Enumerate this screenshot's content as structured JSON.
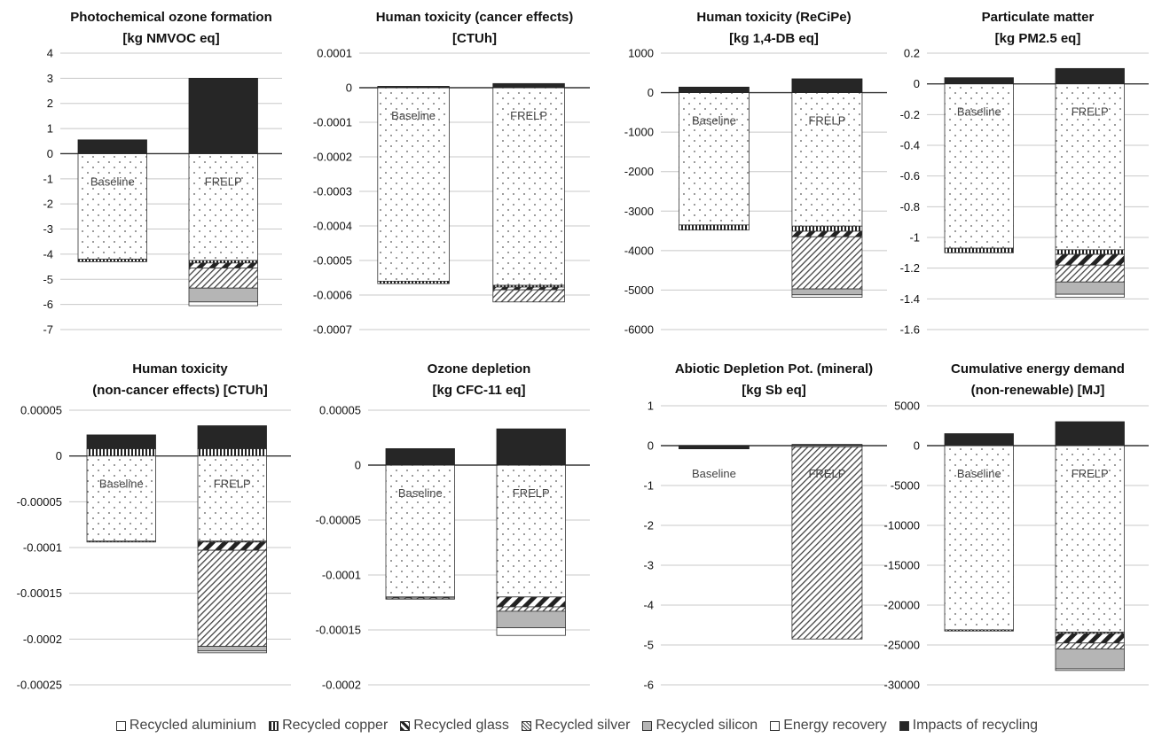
{
  "colors": {
    "impacts": "#262626",
    "silicon": "#b5b5b5",
    "axis": "#333333",
    "grid": "#c8c8c8"
  },
  "legend": [
    {
      "label": "Recycled aluminium",
      "key": "aluminium"
    },
    {
      "label": "Recycled copper",
      "key": "copper"
    },
    {
      "label": "Recycled glass",
      "key": "glass"
    },
    {
      "label": "Recycled silver",
      "key": "silver"
    },
    {
      "label": "Recycled silicon",
      "key": "silicon"
    },
    {
      "label": "Energy recovery",
      "key": "energy"
    },
    {
      "label": "Impacts of recycling",
      "key": "impacts"
    }
  ],
  "chart_data": [
    {
      "type": "bar",
      "stacked": true,
      "title": [
        "Photochemical ozone formation",
        "[kg NMVOC eq]"
      ],
      "yticks": [
        "4",
        "3",
        "2",
        "1",
        "0",
        "-1",
        "-2",
        "-3",
        "-4",
        "-5",
        "-6",
        "-7"
      ],
      "ylim": [
        -7,
        4
      ],
      "grid": true,
      "categories": [
        "Baseline",
        "FRELP"
      ],
      "series": [
        {
          "name": "Recycled aluminium",
          "key": "aluminium",
          "values": [
            -4.2,
            -4.25
          ]
        },
        {
          "name": "Recycled copper",
          "key": "copper",
          "values": [
            -0.1,
            -0.1
          ]
        },
        {
          "name": "Recycled glass",
          "key": "glass",
          "values": [
            0,
            -0.2
          ]
        },
        {
          "name": "Recycled silver",
          "key": "silver",
          "values": [
            0,
            -0.8
          ]
        },
        {
          "name": "Recycled silicon",
          "key": "silicon",
          "values": [
            0,
            -0.55
          ]
        },
        {
          "name": "Energy recovery",
          "key": "energy",
          "values": [
            0,
            -0.15
          ]
        },
        {
          "name": "Impacts of recycling",
          "key": "impacts",
          "values": [
            0.55,
            3.0
          ]
        }
      ]
    },
    {
      "type": "bar",
      "stacked": true,
      "title": [
        "Human toxicity (cancer effects)",
        "[CTUh]"
      ],
      "yticks": [
        "0.0001",
        "0",
        "-0.0001",
        "-0.0002",
        "-0.0003",
        "-0.0004",
        "-0.0005",
        "-0.0006",
        "-0.0007"
      ],
      "ylim": [
        -0.0007,
        0.0001
      ],
      "grid": true,
      "categories": [
        "Baseline",
        "FRELP"
      ],
      "series": [
        {
          "name": "Recycled aluminium",
          "key": "aluminium",
          "values": [
            -0.00056,
            -0.000572
          ]
        },
        {
          "name": "Recycled copper",
          "key": "copper",
          "values": [
            -7e-06,
            -5e-06
          ]
        },
        {
          "name": "Recycled glass",
          "key": "glass",
          "values": [
            0,
            -8e-06
          ]
        },
        {
          "name": "Recycled silver",
          "key": "silver",
          "values": [
            0,
            -3.5e-05
          ]
        },
        {
          "name": "Recycled silicon",
          "key": "silicon",
          "values": [
            0,
            0
          ]
        },
        {
          "name": "Energy recovery",
          "key": "energy",
          "values": [
            0,
            0
          ]
        },
        {
          "name": "Impacts of recycling",
          "key": "impacts",
          "values": [
            4e-06,
            1.2e-05
          ]
        }
      ]
    },
    {
      "type": "bar",
      "stacked": true,
      "title": [
        "Human toxicity (ReCiPe)",
        "[kg 1,4-DB eq]"
      ],
      "yticks": [
        "1000",
        "0",
        "-1000",
        "-2000",
        "-3000",
        "-4000",
        "-5000",
        "-6000"
      ],
      "ylim": [
        -6000,
        1000
      ],
      "grid": true,
      "categories": [
        "Baseline",
        "FRELP"
      ],
      "series": [
        {
          "name": "Recycled aluminium",
          "key": "aluminium",
          "values": [
            -3350,
            -3380
          ]
        },
        {
          "name": "Recycled copper",
          "key": "copper",
          "values": [
            -130,
            -130
          ]
        },
        {
          "name": "Recycled glass",
          "key": "glass",
          "values": [
            0,
            -140
          ]
        },
        {
          "name": "Recycled silver",
          "key": "silver",
          "values": [
            0,
            -1320
          ]
        },
        {
          "name": "Recycled silicon",
          "key": "silicon",
          "values": [
            0,
            -150
          ]
        },
        {
          "name": "Energy recovery",
          "key": "energy",
          "values": [
            0,
            -60
          ]
        },
        {
          "name": "Impacts of recycling",
          "key": "impacts",
          "values": [
            140,
            350
          ]
        }
      ]
    },
    {
      "type": "bar",
      "stacked": true,
      "title": [
        "Particulate matter",
        "[kg PM2.5  eq]"
      ],
      "yticks": [
        "0.2",
        "0",
        "-0.2",
        "-0.4",
        "-0.6",
        "-0.8",
        "-1",
        "-1.2",
        "-1.4",
        "-1.6"
      ],
      "ylim": [
        -1.6,
        0.2
      ],
      "grid": true,
      "categories": [
        "Baseline",
        "FRELP"
      ],
      "series": [
        {
          "name": "Recycled aluminium",
          "key": "aluminium",
          "values": [
            -1.07,
            -1.08
          ]
        },
        {
          "name": "Recycled copper",
          "key": "copper",
          "values": [
            -0.03,
            -0.03
          ]
        },
        {
          "name": "Recycled glass",
          "key": "glass",
          "values": [
            0,
            -0.07
          ]
        },
        {
          "name": "Recycled silver",
          "key": "silver",
          "values": [
            0,
            -0.11
          ]
        },
        {
          "name": "Recycled silicon",
          "key": "silicon",
          "values": [
            0,
            -0.08
          ]
        },
        {
          "name": "Energy recovery",
          "key": "energy",
          "values": [
            0,
            -0.02
          ]
        },
        {
          "name": "Impacts of recycling",
          "key": "impacts",
          "values": [
            0.04,
            0.1
          ]
        }
      ]
    },
    {
      "type": "bar",
      "stacked": true,
      "title": [
        "Human toxicity",
        "(non-cancer effects) [CTUh]"
      ],
      "yticks": [
        "0.00005",
        "0",
        "-0.00005",
        "-0.0001",
        "-0.00015",
        "-0.0002",
        "-0.00025"
      ],
      "ylim": [
        -0.00025,
        5e-05
      ],
      "grid": true,
      "categories": [
        "Baseline",
        "FRELP"
      ],
      "series": [
        {
          "name": "Recycled aluminium",
          "key": "aluminium",
          "values": [
            -9.3e-05,
            -9.3e-05
          ]
        },
        {
          "name": "Recycled copper",
          "key": "copper",
          "values": [
            -1e-06,
            -1e-06
          ]
        },
        {
          "name": "Recycled glass",
          "key": "glass",
          "values": [
            0,
            -9e-06
          ]
        },
        {
          "name": "Recycled silver",
          "key": "silver",
          "values": [
            0,
            -0.000105
          ]
        },
        {
          "name": "Recycled silicon",
          "key": "silicon",
          "values": [
            0,
            -5e-06
          ]
        },
        {
          "name": "Energy recovery",
          "key": "energy",
          "values": [
            0,
            -2e-06
          ]
        },
        {
          "name": "Impacts of recycling",
          "key": "impacts",
          "values": [
            1.5e-05,
            2.5e-05
          ]
        }
      ],
      "copper_positive": [
        8e-06,
        8e-06
      ]
    },
    {
      "type": "bar",
      "stacked": true,
      "title": [
        "Ozone depletion",
        "[kg CFC-11  eq]"
      ],
      "yticks": [
        "0.00005",
        "0",
        "-0.00005",
        "-0.0001",
        "-0.00015",
        "-0.0002"
      ],
      "ylim": [
        -0.0002,
        5e-05
      ],
      "grid": true,
      "categories": [
        "Baseline",
        "FRELP"
      ],
      "series": [
        {
          "name": "Recycled aluminium",
          "key": "aluminium",
          "values": [
            -0.00012,
            -0.00012
          ]
        },
        {
          "name": "Recycled copper",
          "key": "copper",
          "values": [
            0,
            0
          ]
        },
        {
          "name": "Recycled glass",
          "key": "glass",
          "values": [
            -1e-06,
            -9e-06
          ]
        },
        {
          "name": "Recycled silver",
          "key": "silver",
          "values": [
            -1e-06,
            -4e-06
          ]
        },
        {
          "name": "Recycled silicon",
          "key": "silicon",
          "values": [
            0,
            -1.5e-05
          ]
        },
        {
          "name": "Energy recovery",
          "key": "energy",
          "values": [
            0,
            -7e-06
          ]
        },
        {
          "name": "Impacts of recycling",
          "key": "impacts",
          "values": [
            1.5e-05,
            3.3e-05
          ]
        }
      ]
    },
    {
      "type": "bar",
      "stacked": true,
      "title": [
        "Abiotic Depletion Pot. (mineral)",
        "[kg Sb eq]"
      ],
      "yticks": [
        "1",
        "0",
        "-1",
        "-2",
        "-3",
        "-4",
        "-5",
        "-6"
      ],
      "ylim": [
        -6,
        1
      ],
      "grid": true,
      "categories": [
        "Baseline",
        "FRELP"
      ],
      "series": [
        {
          "name": "Recycled aluminium",
          "key": "aluminium",
          "values": [
            0,
            -0.03
          ]
        },
        {
          "name": "Recycled copper",
          "key": "copper",
          "values": [
            0,
            0
          ]
        },
        {
          "name": "Recycled glass",
          "key": "glass",
          "values": [
            0,
            0
          ]
        },
        {
          "name": "Recycled silver",
          "key": "silver",
          "values": [
            0,
            -4.82
          ]
        },
        {
          "name": "Recycled silicon",
          "key": "silicon",
          "values": [
            0,
            0
          ]
        },
        {
          "name": "Energy recovery",
          "key": "energy",
          "values": [
            0,
            0
          ]
        },
        {
          "name": "Impacts of recycling",
          "key": "impacts",
          "values": [
            -0.08,
            0.03
          ]
        }
      ]
    },
    {
      "type": "bar",
      "stacked": true,
      "title": [
        "Cumulative energy demand",
        "(non-renewable)  [MJ]"
      ],
      "yticks": [
        "5000",
        "0",
        "-5000",
        "-10000",
        "-15000",
        "-20000",
        "-25000",
        "-30000"
      ],
      "ylim": [
        -30000,
        5000
      ],
      "grid": true,
      "categories": [
        "Baseline",
        "FRELP"
      ],
      "series": [
        {
          "name": "Recycled aluminium",
          "key": "aluminium",
          "values": [
            -23100,
            -23400
          ]
        },
        {
          "name": "Recycled copper",
          "key": "copper",
          "values": [
            -150,
            -150
          ]
        },
        {
          "name": "Recycled glass",
          "key": "glass",
          "values": [
            0,
            -1200
          ]
        },
        {
          "name": "Recycled silver",
          "key": "silver",
          "values": [
            0,
            -750
          ]
        },
        {
          "name": "Recycled silicon",
          "key": "silicon",
          "values": [
            0,
            -2500
          ]
        },
        {
          "name": "Energy recovery",
          "key": "energy",
          "values": [
            0,
            -200
          ]
        },
        {
          "name": "Impacts of recycling",
          "key": "impacts",
          "values": [
            1500,
            3000
          ]
        }
      ]
    }
  ]
}
